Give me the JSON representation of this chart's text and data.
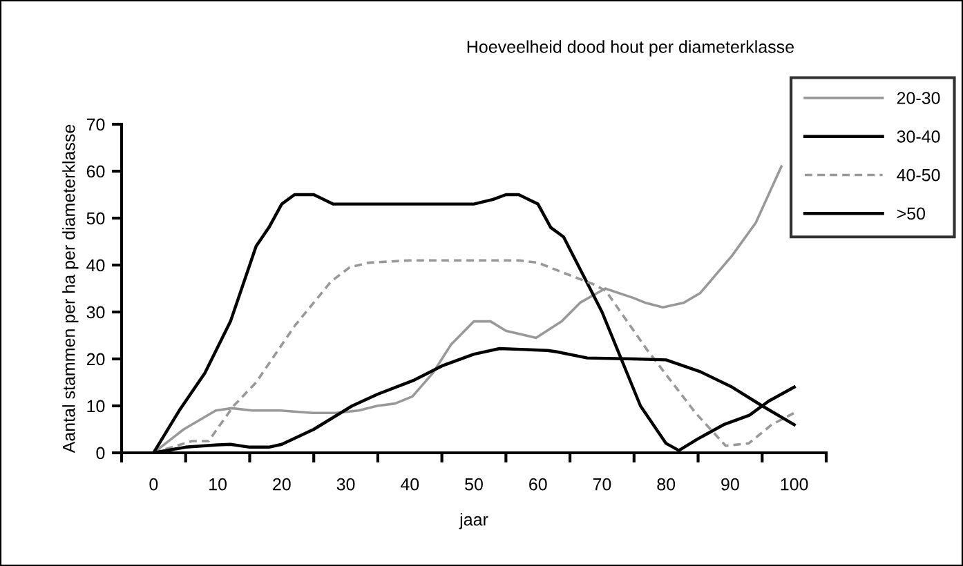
{
  "chart_data": {
    "type": "line",
    "title": "Hoeveelheid dood hout per diameterklasse",
    "xlabel": "jaar",
    "ylabel": "Aantal stammen per ha per diameterklasse",
    "xlim": [
      -5,
      105
    ],
    "xticks": [
      {
        "value": -5,
        "label": null
      },
      0,
      {
        "value": 5,
        "label": null
      },
      10,
      {
        "value": 15,
        "label": null
      },
      20,
      {
        "value": 25,
        "label": null
      },
      30,
      {
        "value": 35,
        "label": null
      },
      40,
      {
        "value": 45,
        "label": null
      },
      50,
      {
        "value": 55,
        "label": null
      },
      60,
      {
        "value": 65,
        "label": null
      },
      70,
      {
        "value": 75,
        "label": null
      },
      80,
      {
        "value": 85,
        "label": null
      },
      90,
      {
        "value": 95,
        "label": null
      },
      100,
      {
        "value": 105,
        "label": null
      }
    ],
    "ylim": [
      0,
      70
    ],
    "yticks": [
      0,
      10,
      20,
      30,
      40,
      50,
      60,
      70
    ],
    "grid": false,
    "legend": "top right",
    "marker": "none",
    "series": [
      {
        "name": "20-30",
        "color": "#999999",
        "line_style": "solid",
        "x": [
          0,
          4.7,
          9.7,
          12.2,
          15.4,
          19.8,
          24.8,
          28.4,
          32,
          34.9,
          37.7,
          40.4,
          43.6,
          46.4,
          50,
          52.6,
          55,
          59.7,
          63.7,
          66.6,
          70.5,
          74.9,
          76.7,
          79.5,
          82.8,
          85.3,
          90.3,
          94,
          98
        ],
        "values": [
          0,
          5,
          9,
          9.5,
          9,
          9,
          8.5,
          8.5,
          9,
          10,
          10.5,
          12,
          17,
          23,
          28,
          28,
          26,
          24.5,
          28,
          32,
          35,
          33,
          32,
          31,
          32,
          34,
          42,
          49,
          61
        ]
      },
      {
        "name": "30-40",
        "color": "#000000",
        "line_style": "solid",
        "x": [
          0,
          4,
          8,
          12,
          16,
          18,
          20,
          22,
          25,
          28,
          50,
          53,
          55,
          57,
          60,
          62,
          64,
          67,
          70,
          73,
          76,
          80,
          82,
          85,
          89,
          93,
          96,
          100
        ],
        "values": [
          0,
          9,
          17,
          28,
          44,
          48,
          53,
          55,
          55,
          53,
          53,
          54,
          55,
          55,
          53,
          48,
          46,
          38,
          30,
          20,
          10,
          2,
          0.5,
          3,
          6,
          8,
          11,
          14
        ]
      },
      {
        "name": "40-50",
        "color": "#999999",
        "line_style": "dashed",
        "x": [
          0,
          6,
          8.6,
          10.4,
          12.5,
          16,
          19,
          22,
          25,
          27.7,
          30.6,
          33.5,
          40,
          50,
          57,
          60,
          63.7,
          68.5,
          70.6,
          77,
          84.6,
          89.3,
          92.9,
          96.5,
          100
        ],
        "values": [
          0,
          2.5,
          2.5,
          6,
          10,
          15,
          21,
          27,
          32,
          36.5,
          39.5,
          40.5,
          41,
          41,
          41,
          40.5,
          38.5,
          36,
          34.5,
          22,
          8.5,
          1.5,
          2,
          6,
          8.5
        ]
      },
      {
        "name": ">50",
        "color": "#000000",
        "line_style": "solid",
        "x": [
          0,
          5,
          10,
          12,
          15,
          18,
          20,
          25,
          31,
          35,
          40.7,
          45,
          50,
          54,
          58,
          61.5,
          63,
          67.7,
          75,
          80,
          85.3,
          90.3,
          95,
          100
        ],
        "values": [
          0,
          1.2,
          1.7,
          1.8,
          1.2,
          1.2,
          1.8,
          5,
          10,
          12.5,
          15.5,
          18.5,
          21,
          22.2,
          22,
          21.8,
          21.5,
          20.2,
          20,
          19.8,
          17.3,
          14,
          10,
          6
        ]
      }
    ]
  }
}
